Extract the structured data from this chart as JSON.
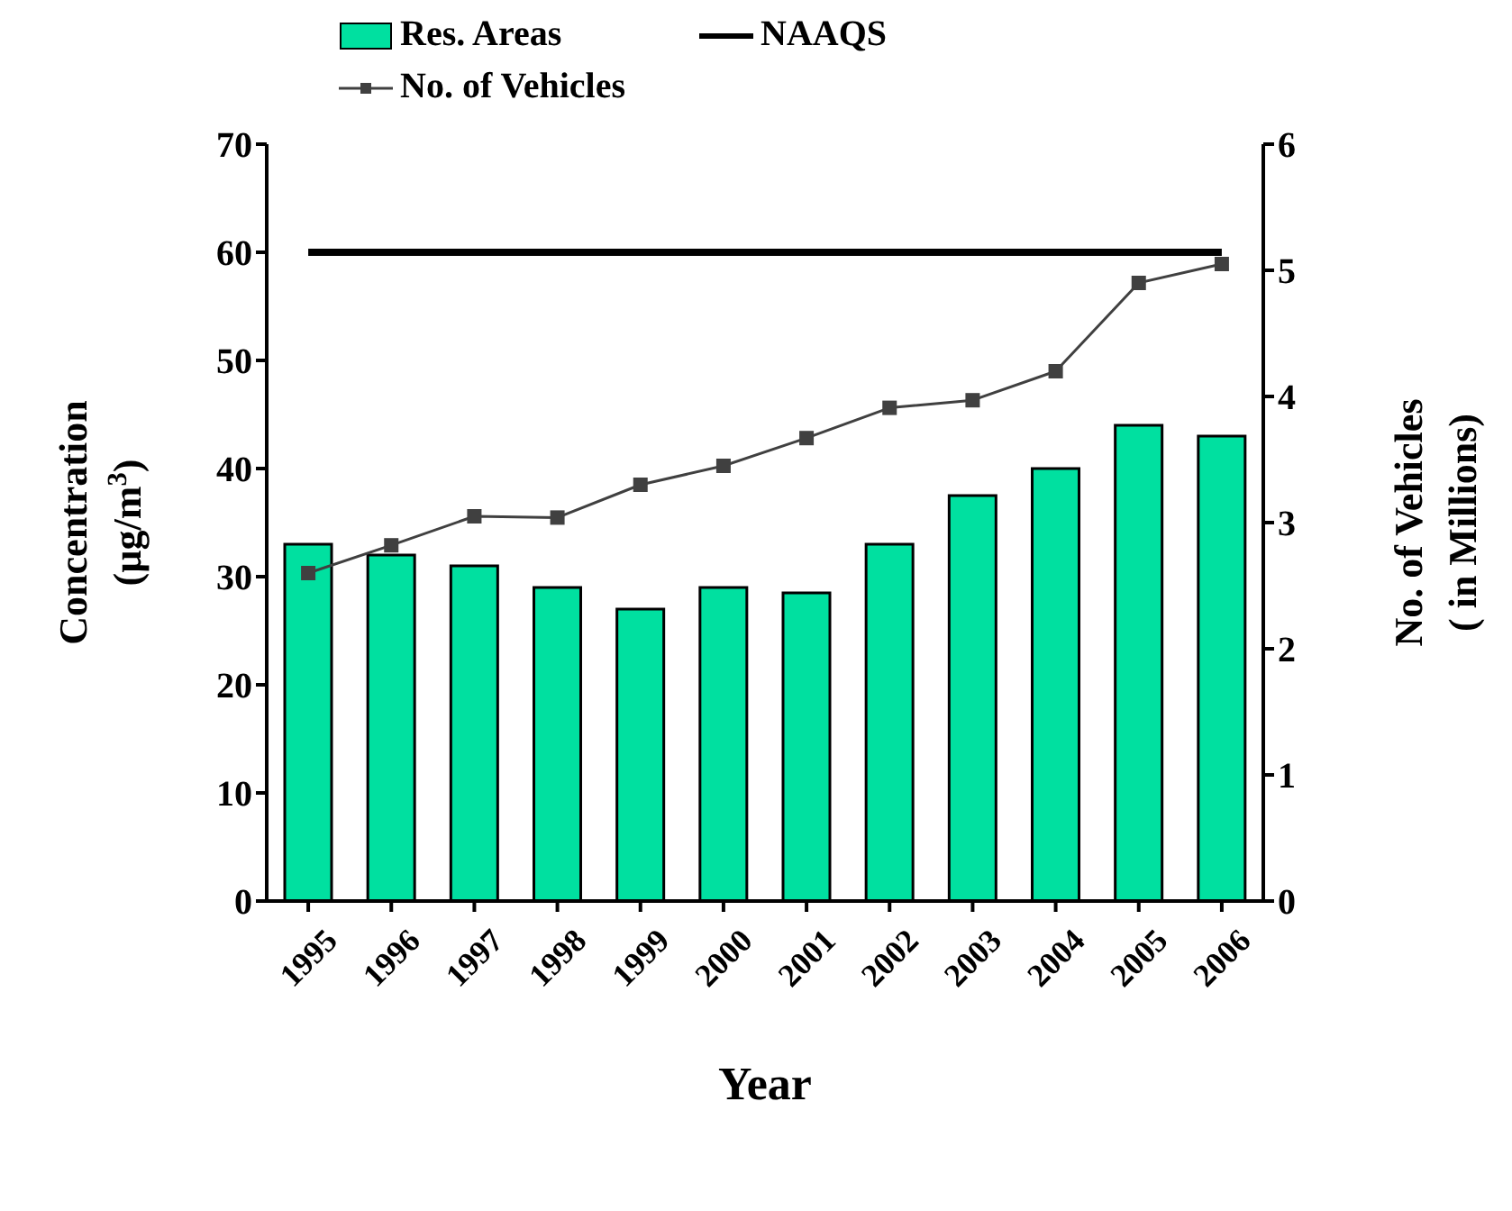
{
  "chart_data": {
    "type": "bar",
    "categories": [
      "1995",
      "1996",
      "1997",
      "1998",
      "1999",
      "2000",
      "2001",
      "2002",
      "2003",
      "2004",
      "2005",
      "2006"
    ],
    "xlabel": "Year",
    "ylabel": "Concentration (µg/m$^{3}$)",
    "y2label": "No. of Vehicles ( in Millions)",
    "series": [
      {
        "name": "Res. Areas",
        "color": "#00e0a0",
        "values": [
          33,
          32,
          31,
          29,
          27,
          29,
          28.5,
          33,
          37.5,
          40,
          44,
          43
        ]
      },
      {
        "name": "NAAQS",
        "type": "line",
        "color": "#000000",
        "marker": "none",
        "values": [
          60,
          60,
          60,
          60,
          60,
          60,
          60,
          60,
          60,
          60,
          60,
          60
        ]
      },
      {
        "name": "No. of Vehicles",
        "type": "line",
        "axis": "y2",
        "color": "#404040",
        "marker": "square",
        "values": [
          2.6,
          2.82,
          3.05,
          3.04,
          3.3,
          3.45,
          3.67,
          3.91,
          3.97,
          4.2,
          4.9,
          5.05
        ]
      }
    ],
    "ylim": [
      0,
      70
    ],
    "yticks": [
      0,
      10,
      20,
      30,
      40,
      50,
      60,
      70
    ],
    "y2lim": [
      0,
      6
    ],
    "y2ticks": [
      0,
      1,
      2,
      3,
      4,
      5,
      6
    ],
    "grid": false,
    "legend": "top left"
  }
}
